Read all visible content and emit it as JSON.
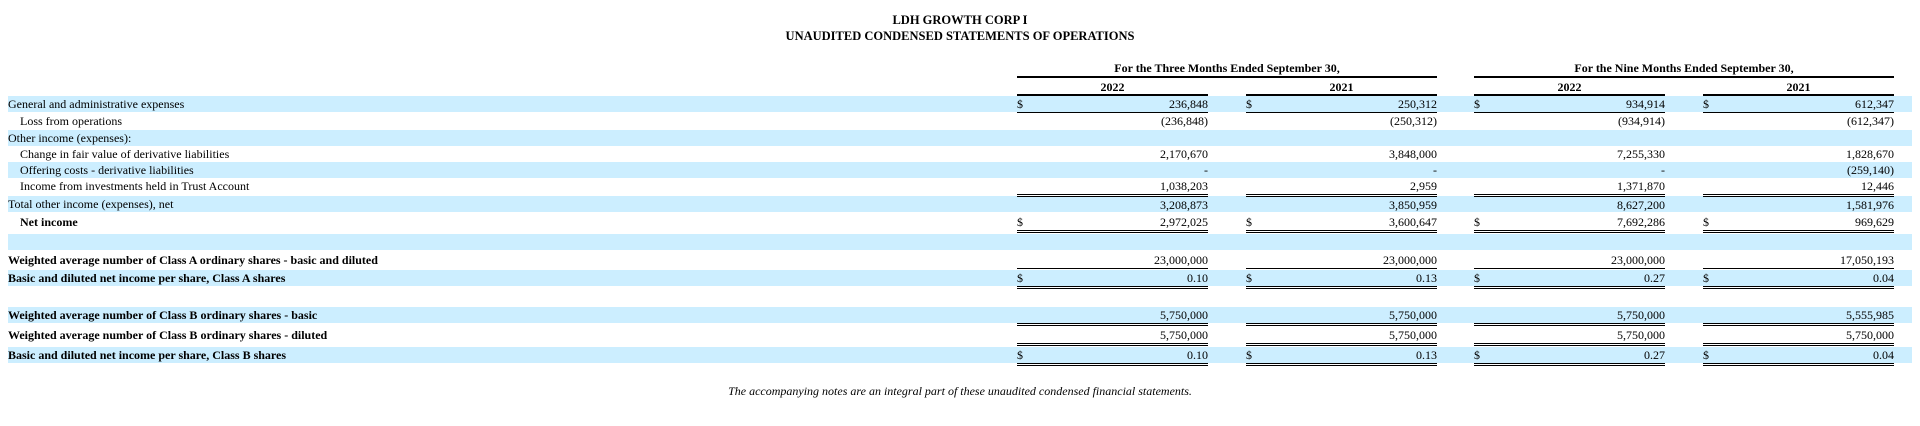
{
  "header": {
    "company": "LDH GROWTH CORP I",
    "statement": "UNAUDITED CONDENSED STATEMENTS OF OPERATIONS"
  },
  "columns": {
    "three_months": "For the Three Months Ended September 30,",
    "nine_months": "For the Nine Months Ended September 30,",
    "years": [
      "2022",
      "2021",
      "2022",
      "2021"
    ]
  },
  "rows": [
    {
      "label": "General and administrative expenses",
      "values": [
        "236,848",
        "250,312",
        "934,914",
        "612,347"
      ],
      "dollar": true
    },
    {
      "label": "Loss from operations",
      "values": [
        "(236,848)",
        "(250,312)",
        "(934,914)",
        "(612,347)"
      ],
      "dollar": false
    },
    {
      "label": "Other income (expenses):",
      "values": [
        "",
        "",
        "",
        ""
      ],
      "dollar": false
    },
    {
      "label": "Change in fair value of derivative liabilities",
      "values": [
        "2,170,670",
        "3,848,000",
        "7,255,330",
        "1,828,670"
      ],
      "dollar": false
    },
    {
      "label": "Offering costs - derivative liabilities",
      "values": [
        "-",
        "-",
        "-",
        "(259,140)"
      ],
      "dollar": false
    },
    {
      "label": "Income from investments held in Trust Account",
      "values": [
        "1,038,203",
        "2,959",
        "1,371,870",
        "12,446"
      ],
      "dollar": false
    },
    {
      "label": "Total other income (expenses), net",
      "values": [
        "3,208,873",
        "3,850,959",
        "8,627,200",
        "1,581,976"
      ],
      "dollar": false
    },
    {
      "label": "Net income",
      "values": [
        "2,972,025",
        "3,600,647",
        "7,692,286",
        "969,629"
      ],
      "dollar": true
    },
    {
      "label": "",
      "values": [
        "",
        "",
        "",
        ""
      ],
      "dollar": false
    },
    {
      "label": "Weighted average number of Class A ordinary shares - basic and diluted",
      "values": [
        "23,000,000",
        "23,000,000",
        "23,000,000",
        "17,050,193"
      ],
      "dollar": false
    },
    {
      "label": "Basic and diluted net income per share, Class A shares",
      "values": [
        "0.10",
        "0.13",
        "0.27",
        "0.04"
      ],
      "dollar": true
    },
    {
      "label": "",
      "values": [
        "",
        "",
        "",
        ""
      ],
      "dollar": false
    },
    {
      "label": "Weighted average number of Class B ordinary shares - basic",
      "values": [
        "5,750,000",
        "5,750,000",
        "5,750,000",
        "5,555,985"
      ],
      "dollar": false
    },
    {
      "label": "Weighted average number of Class B ordinary shares - diluted",
      "values": [
        "5,750,000",
        "5,750,000",
        "5,750,000",
        "5,750,000"
      ],
      "dollar": false
    },
    {
      "label": "Basic and diluted net income per share, Class B shares",
      "values": [
        "0.10",
        "0.13",
        "0.27",
        "0.04"
      ],
      "dollar": true
    }
  ],
  "dollar_sign": "$",
  "footnote": "The accompanying notes are an integral part of these unaudited condensed financial statements."
}
